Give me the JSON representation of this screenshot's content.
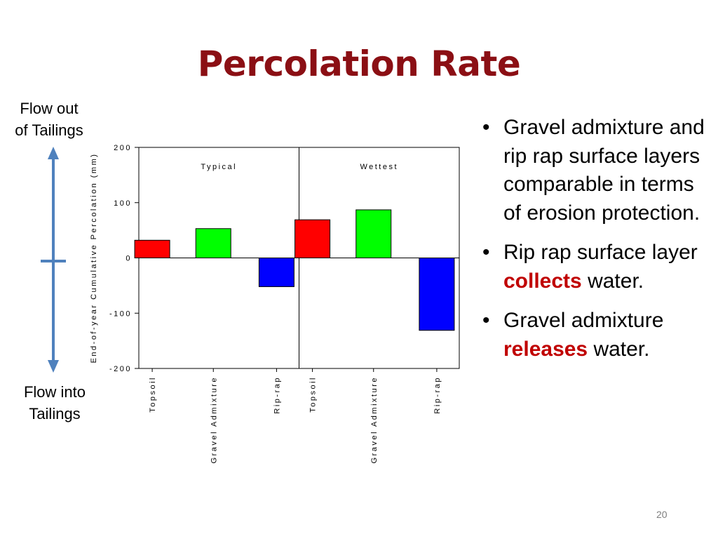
{
  "slide": {
    "title": "Percolation Rate",
    "title_color": "#8B0F14",
    "flow_out_line1": "Flow out",
    "flow_out_line2": "of Tailings",
    "flow_into_line1": "Flow into",
    "flow_into_line2": "Tailings",
    "arrow_color": "#4F81BD",
    "slide_number": "20",
    "bullets": [
      {
        "before": "Gravel admixture and rip rap surface layers comparable in terms of erosion protection.",
        "emph": "",
        "after": ""
      },
      {
        "before": "Rip rap surface layer ",
        "emph": "collects",
        "after": " water."
      },
      {
        "before": "Gravel admixture ",
        "emph": "releases",
        "after": " water."
      }
    ],
    "emph_color": "#C00000"
  },
  "chart_data": {
    "type": "bar",
    "title": "",
    "xlabel": "",
    "ylabel": "End-of-year Cumulative Percolation (mm)",
    "ylim": [
      -200,
      200
    ],
    "yticks": [
      200,
      100,
      0,
      -100,
      -200
    ],
    "ytick_labels": [
      "200",
      "100",
      "0",
      "-100",
      "-200"
    ],
    "grid": false,
    "panels": [
      {
        "name": "Typical",
        "categories": [
          "Topsoil",
          "Gravel Admixture",
          "Rip-rap"
        ],
        "values": [
          32,
          53,
          -52
        ],
        "colors": [
          "#FF0000",
          "#00FF00",
          "#0000FF"
        ]
      },
      {
        "name": "Wettest",
        "categories": [
          "Topsoil",
          "Gravel Admixture",
          "Rip-rap"
        ],
        "values": [
          69,
          87,
          -131
        ],
        "colors": [
          "#FF0000",
          "#00FF00",
          "#0000FF"
        ]
      }
    ]
  }
}
